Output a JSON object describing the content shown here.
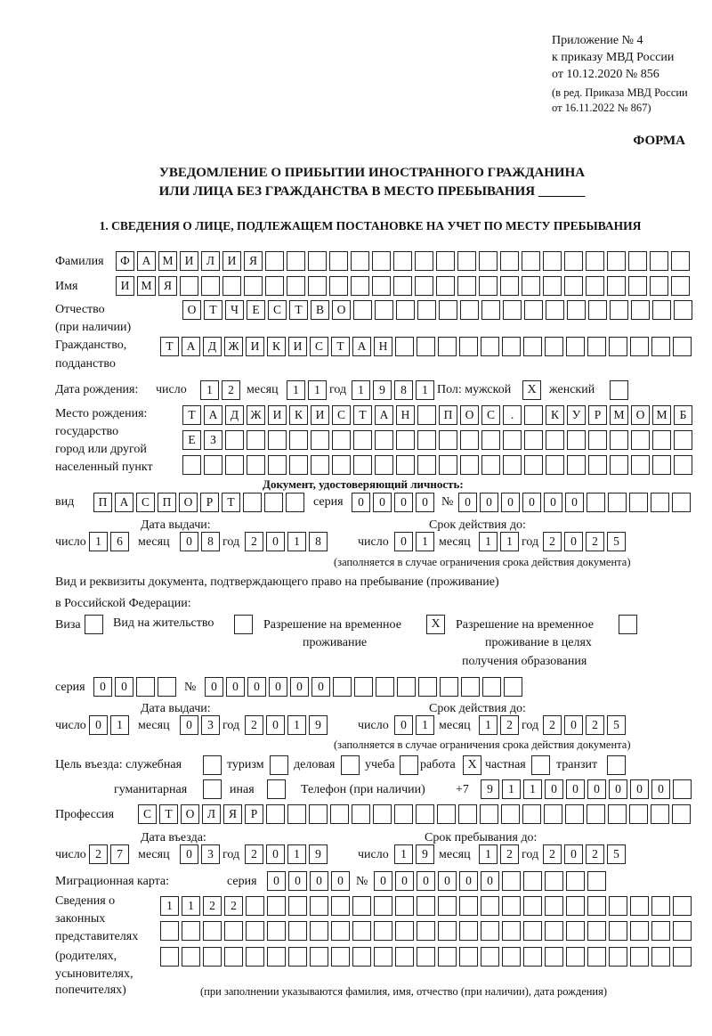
{
  "header": {
    "appendix": "Приложение № 4",
    "order": "к приказу МВД России",
    "order_date": "от 10.12.2020 № 856",
    "revision_1": "(в ред. Приказа МВД России",
    "revision_2": "от 16.11.2022 № 867)",
    "form_label": "ФОРМА",
    "title_1": "УВЕДОМЛЕНИЕ О ПРИБЫТИИ ИНОСТРАННОГО ГРАЖДАНИНА",
    "title_2": "ИЛИ ЛИЦА БЕЗ ГРАЖДАНСТВА В МЕСТО ПРЕБЫВАНИЯ _______",
    "section_1": "1. СВЕДЕНИЯ О ЛИЦЕ, ПОДЛЕЖАЩЕМ ПОСТАНОВКЕ НА УЧЕТ ПО МЕСТУ ПРЕБЫВАНИЯ"
  },
  "labels": {
    "surname": "Фамилия",
    "name": "Имя",
    "patronymic_1": "Отчество",
    "patronymic_2": "(при наличии)",
    "citizenship_1": "Гражданство,",
    "citizenship_2": "подданство",
    "birth_date": "Дата рождения:",
    "day": "число",
    "month": "месяц",
    "year": "год",
    "sex": "Пол: мужской",
    "female": "женский",
    "birthplace_1": "Место рождения:",
    "birthplace_2": "государство",
    "birthplace_3": "город или другой",
    "birthplace_4": "населенный пункт",
    "id_doc": "Документ, удостоверяющий личность:",
    "kind": "вид",
    "series": "серия",
    "number": "№",
    "issue_date": "Дата выдачи:",
    "valid_until": "Срок действия до:",
    "validity_note": "(заполняется в случае ограничения срока действия документа)",
    "residence_doc_1": "Вид и реквизиты документа, подтверждающего право на пребывание (проживание)",
    "residence_doc_2": "в Российской Федерации:",
    "visa": "Виза",
    "residence_permit": "Вид на жительство",
    "temp_permit_1": "Разрешение на временное",
    "temp_permit_2": "проживание",
    "temp_edu_1": "Разрешение на временное",
    "temp_edu_2": "проживание в целях",
    "temp_edu_3": "получения образования",
    "purpose": "Цель въезда: служебная",
    "tourism": "туризм",
    "business": "деловая",
    "study": "учеба",
    "work": "работа",
    "private": "частная",
    "transit": "транзит",
    "humanitarian": "гуманитарная",
    "other": "иная",
    "phone": "Телефон (при наличии)",
    "phone_prefix": "+7",
    "profession": "Профессия",
    "entry_date": "Дата въезда:",
    "stay_until": "Срок пребывания до:",
    "migration_card": "Миграционная карта:",
    "reps_1": "Сведения о",
    "reps_2": "законных",
    "reps_3": "представителях",
    "reps_4": "(родителях,",
    "reps_5": "усыновителях,",
    "reps_6": "попечителях)",
    "reps_note": "(при заполнении указываются фамилия, имя, отчество (при наличии), дата рождения)"
  },
  "person": {
    "surname": "ФАМИЛИЯ",
    "name": "ИМЯ",
    "patronymic": "ОТЧЕСТВО",
    "citizenship": "ТАДЖИКИСТАН",
    "birth_day": "12",
    "birth_month": "11",
    "birth_year": "1981",
    "sex_male": "X",
    "sex_female": "",
    "birthplace_1": "ТАДЖИКИСТАН ПОС. КУРМОМБ",
    "birthplace_2": "ЕЗ",
    "birthplace_3": ""
  },
  "id_document": {
    "kind": "ПАСПОРТ",
    "series": "0000",
    "number": "000000",
    "issue_day": "16",
    "issue_month": "08",
    "issue_year": "2018",
    "valid_day": "01",
    "valid_month": "11",
    "valid_year": "2025"
  },
  "residence_document": {
    "visa": "",
    "residence_permit": "",
    "temp_permit": "X",
    "temp_edu": "",
    "series": "00",
    "number": "000000",
    "issue_day": "01",
    "issue_month": "03",
    "issue_year": "2019",
    "valid_day": "01",
    "valid_month": "12",
    "valid_year": "2025"
  },
  "visit": {
    "service": "",
    "tourism": "",
    "business": "",
    "study": "",
    "work": "X",
    "private": "",
    "transit": "",
    "humanitarian": "",
    "other": "",
    "phone": "911000000",
    "profession": "СТОЛЯР",
    "entry_day": "27",
    "entry_month": "03",
    "entry_year": "2019",
    "stay_day": "19",
    "stay_month": "12",
    "stay_year": "2025",
    "mc_series": "0000",
    "mc_number": "000000",
    "reps_1": "1122",
    "reps_2": "",
    "reps_3": ""
  }
}
